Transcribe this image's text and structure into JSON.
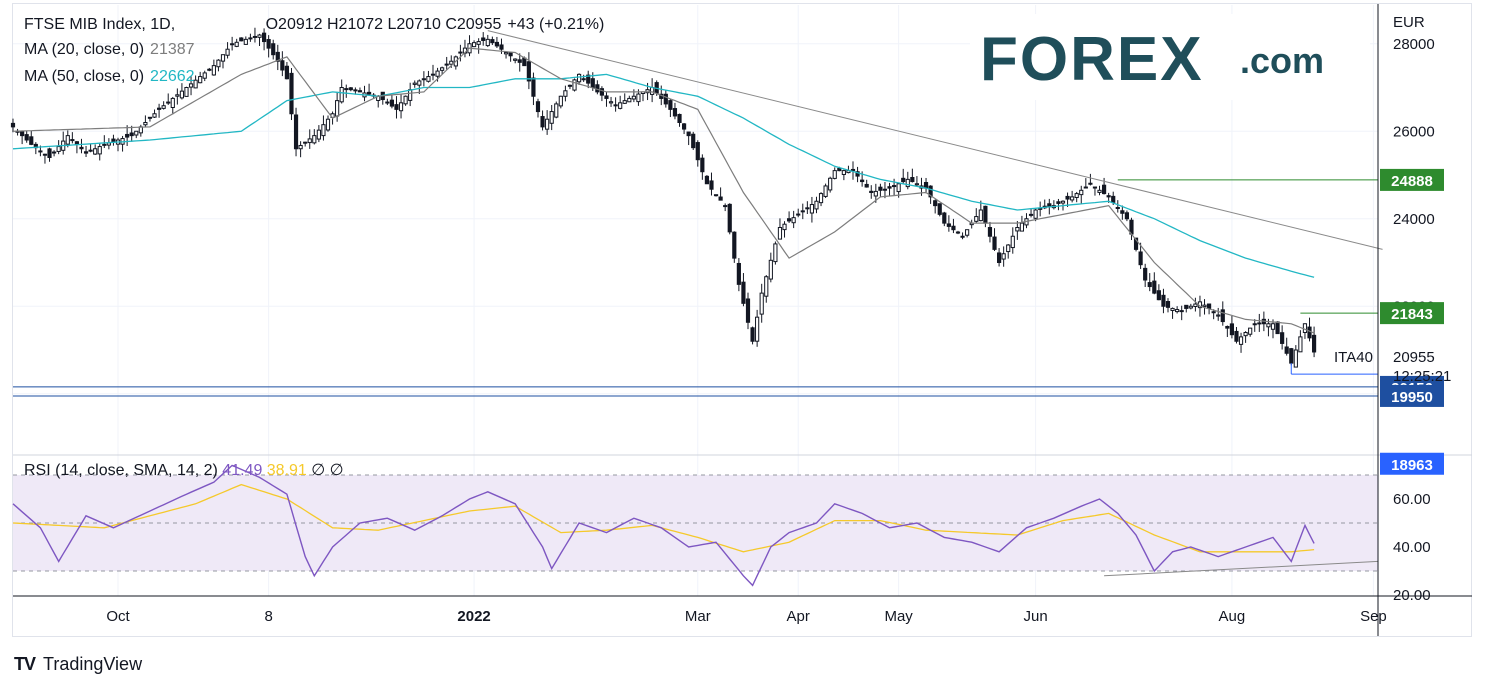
{
  "legend": {
    "symbol": "FTSE MIB Index, 1D, ",
    "ohlc": "O20912  H21072  L20710  C20955",
    "change": "+43 (+0.21%)",
    "ma20_label": "MA (20, close, 0)",
    "ma20_value": "21387",
    "ma50_label": "MA (50, close, 0)",
    "ma50_value": "22662"
  },
  "logo": {
    "text": "FOREX",
    "suffix": ".com"
  },
  "currency": "EUR",
  "price_labels": {
    "symbol": "ITA40",
    "last": "20955",
    "countdown": "12:25:21",
    "level_24888": "24888",
    "level_21843": "21843",
    "level_20156": "20156",
    "level_19950": "19950",
    "level_18963": "18963"
  },
  "rsi_legend": {
    "label": "RSI (14, close, SMA, 14, 2)",
    "rsi_value": "41.49",
    "sma_value": "38.91",
    "extra": "∅  ∅"
  },
  "brand": "TradingView",
  "colors": {
    "ma20": "#7d7d7d",
    "ma50": "#22b7c4",
    "rsi": "#7e57c2",
    "rsi_sma": "#f5c92b",
    "level_green": "#2e8b2e",
    "level_blue": "#2962ff",
    "axis_text": "#131722"
  },
  "chart_data": [
    {
      "type": "candlestick",
      "title": "FTSE MIB Index, 1D",
      "ylabel": "EUR",
      "ylim": [
        18600,
        29000
      ],
      "y_ticks": [
        20000,
        22000,
        24000,
        26000,
        28000
      ],
      "x_ticks": [
        "Oct",
        "8",
        "2022",
        "Mar",
        "Apr",
        "May",
        "Jun",
        "Aug",
        "Sep"
      ],
      "last_close": 20955,
      "close_anchors": [
        {
          "i": 0,
          "v": 26100
        },
        {
          "i": 4,
          "v": 25700
        },
        {
          "i": 8,
          "v": 25400
        },
        {
          "i": 12,
          "v": 25900
        },
        {
          "i": 16,
          "v": 25500
        },
        {
          "i": 20,
          "v": 25700
        },
        {
          "i": 26,
          "v": 25900
        },
        {
          "i": 32,
          "v": 26500
        },
        {
          "i": 38,
          "v": 27000
        },
        {
          "i": 44,
          "v": 27500
        },
        {
          "i": 48,
          "v": 28000
        },
        {
          "i": 54,
          "v": 28200
        },
        {
          "i": 58,
          "v": 27600
        },
        {
          "i": 60,
          "v": 27200
        },
        {
          "i": 62,
          "v": 25600
        },
        {
          "i": 66,
          "v": 25900
        },
        {
          "i": 70,
          "v": 26400
        },
        {
          "i": 72,
          "v": 27000
        },
        {
          "i": 76,
          "v": 26900
        },
        {
          "i": 80,
          "v": 26800
        },
        {
          "i": 84,
          "v": 26500
        },
        {
          "i": 88,
          "v": 27100
        },
        {
          "i": 92,
          "v": 27300
        },
        {
          "i": 96,
          "v": 27600
        },
        {
          "i": 100,
          "v": 28000
        },
        {
          "i": 104,
          "v": 28100
        },
        {
          "i": 108,
          "v": 27800
        },
        {
          "i": 112,
          "v": 27500
        },
        {
          "i": 116,
          "v": 26100
        },
        {
          "i": 120,
          "v": 26800
        },
        {
          "i": 124,
          "v": 27300
        },
        {
          "i": 128,
          "v": 26900
        },
        {
          "i": 132,
          "v": 26600
        },
        {
          "i": 136,
          "v": 26800
        },
        {
          "i": 140,
          "v": 27000
        },
        {
          "i": 144,
          "v": 26500
        },
        {
          "i": 148,
          "v": 25900
        },
        {
          "i": 152,
          "v": 24800
        },
        {
          "i": 156,
          "v": 24300
        },
        {
          "i": 159,
          "v": 22500
        },
        {
          "i": 162,
          "v": 21200
        },
        {
          "i": 164,
          "v": 22300
        },
        {
          "i": 168,
          "v": 23800
        },
        {
          "i": 172,
          "v": 24100
        },
        {
          "i": 176,
          "v": 24400
        },
        {
          "i": 180,
          "v": 25100
        },
        {
          "i": 184,
          "v": 25100
        },
        {
          "i": 188,
          "v": 24600
        },
        {
          "i": 192,
          "v": 24700
        },
        {
          "i": 196,
          "v": 24900
        },
        {
          "i": 200,
          "v": 24700
        },
        {
          "i": 204,
          "v": 23900
        },
        {
          "i": 208,
          "v": 23600
        },
        {
          "i": 212,
          "v": 24200
        },
        {
          "i": 216,
          "v": 23000
        },
        {
          "i": 220,
          "v": 23800
        },
        {
          "i": 224,
          "v": 24200
        },
        {
          "i": 228,
          "v": 24300
        },
        {
          "i": 232,
          "v": 24500
        },
        {
          "i": 236,
          "v": 24800
        },
        {
          "i": 240,
          "v": 24500
        },
        {
          "i": 244,
          "v": 24000
        },
        {
          "i": 248,
          "v": 22600
        },
        {
          "i": 252,
          "v": 22000
        },
        {
          "i": 256,
          "v": 21900
        },
        {
          "i": 260,
          "v": 22100
        },
        {
          "i": 264,
          "v": 21800
        },
        {
          "i": 268,
          "v": 21200
        },
        {
          "i": 272,
          "v": 21600
        },
        {
          "i": 276,
          "v": 21600
        },
        {
          "i": 280,
          "v": 20700
        },
        {
          "i": 283,
          "v": 21600
        },
        {
          "i": 285,
          "v": 20955
        }
      ],
      "ma20_anchors": [
        {
          "i": 0,
          "v": 26000
        },
        {
          "i": 30,
          "v": 26100
        },
        {
          "i": 50,
          "v": 27300
        },
        {
          "i": 60,
          "v": 27700
        },
        {
          "i": 70,
          "v": 26300
        },
        {
          "i": 80,
          "v": 26800
        },
        {
          "i": 90,
          "v": 26900
        },
        {
          "i": 100,
          "v": 27900
        },
        {
          "i": 110,
          "v": 27800
        },
        {
          "i": 120,
          "v": 27200
        },
        {
          "i": 130,
          "v": 26900
        },
        {
          "i": 140,
          "v": 26900
        },
        {
          "i": 150,
          "v": 26500
        },
        {
          "i": 160,
          "v": 24600
        },
        {
          "i": 170,
          "v": 23100
        },
        {
          "i": 180,
          "v": 23700
        },
        {
          "i": 190,
          "v": 24500
        },
        {
          "i": 200,
          "v": 24600
        },
        {
          "i": 210,
          "v": 23900
        },
        {
          "i": 220,
          "v": 23900
        },
        {
          "i": 230,
          "v": 24100
        },
        {
          "i": 240,
          "v": 24300
        },
        {
          "i": 250,
          "v": 23000
        },
        {
          "i": 260,
          "v": 22000
        },
        {
          "i": 270,
          "v": 21700
        },
        {
          "i": 280,
          "v": 21600
        },
        {
          "i": 285,
          "v": 21387
        }
      ],
      "ma50_anchors": [
        {
          "i": 0,
          "v": 25600
        },
        {
          "i": 30,
          "v": 25800
        },
        {
          "i": 50,
          "v": 26000
        },
        {
          "i": 60,
          "v": 26700
        },
        {
          "i": 70,
          "v": 26900
        },
        {
          "i": 80,
          "v": 26800
        },
        {
          "i": 90,
          "v": 27000
        },
        {
          "i": 100,
          "v": 27000
        },
        {
          "i": 110,
          "v": 27200
        },
        {
          "i": 120,
          "v": 27200
        },
        {
          "i": 130,
          "v": 27300
        },
        {
          "i": 140,
          "v": 27000
        },
        {
          "i": 150,
          "v": 26800
        },
        {
          "i": 160,
          "v": 26300
        },
        {
          "i": 170,
          "v": 25700
        },
        {
          "i": 180,
          "v": 25200
        },
        {
          "i": 190,
          "v": 24900
        },
        {
          "i": 200,
          "v": 24700
        },
        {
          "i": 210,
          "v": 24400
        },
        {
          "i": 220,
          "v": 24200
        },
        {
          "i": 230,
          "v": 24300
        },
        {
          "i": 240,
          "v": 24400
        },
        {
          "i": 250,
          "v": 24000
        },
        {
          "i": 260,
          "v": 23500
        },
        {
          "i": 270,
          "v": 23100
        },
        {
          "i": 280,
          "v": 22800
        },
        {
          "i": 285,
          "v": 22662
        }
      ],
      "trendline": [
        {
          "i": 104,
          "v": 28300
        },
        {
          "i": 300,
          "v": 23300
        }
      ],
      "levels": [
        24888,
        21843,
        20156,
        19950,
        18963
      ]
    },
    {
      "type": "line",
      "title": "RSI (14, close, SMA, 14, 2)",
      "ylim": [
        20,
        75
      ],
      "y_ticks": [
        20,
        40,
        60
      ],
      "bands": [
        30,
        50,
        70
      ],
      "rsi_value": 41.49,
      "sma_value": 38.91,
      "rsi_anchors": [
        {
          "i": 0,
          "v": 58
        },
        {
          "i": 6,
          "v": 48
        },
        {
          "i": 10,
          "v": 34
        },
        {
          "i": 16,
          "v": 53
        },
        {
          "i": 22,
          "v": 48
        },
        {
          "i": 30,
          "v": 55
        },
        {
          "i": 38,
          "v": 62
        },
        {
          "i": 44,
          "v": 67
        },
        {
          "i": 48,
          "v": 74
        },
        {
          "i": 54,
          "v": 69
        },
        {
          "i": 60,
          "v": 62
        },
        {
          "i": 64,
          "v": 36
        },
        {
          "i": 66,
          "v": 28
        },
        {
          "i": 70,
          "v": 40
        },
        {
          "i": 76,
          "v": 50
        },
        {
          "i": 82,
          "v": 52
        },
        {
          "i": 88,
          "v": 47
        },
        {
          "i": 94,
          "v": 53
        },
        {
          "i": 100,
          "v": 60
        },
        {
          "i": 104,
          "v": 63
        },
        {
          "i": 110,
          "v": 58
        },
        {
          "i": 116,
          "v": 40
        },
        {
          "i": 118,
          "v": 31
        },
        {
          "i": 124,
          "v": 50
        },
        {
          "i": 130,
          "v": 46
        },
        {
          "i": 136,
          "v": 52
        },
        {
          "i": 142,
          "v": 48
        },
        {
          "i": 148,
          "v": 40
        },
        {
          "i": 154,
          "v": 42
        },
        {
          "i": 160,
          "v": 28
        },
        {
          "i": 162,
          "v": 24
        },
        {
          "i": 166,
          "v": 40
        },
        {
          "i": 170,
          "v": 46
        },
        {
          "i": 176,
          "v": 50
        },
        {
          "i": 180,
          "v": 58
        },
        {
          "i": 186,
          "v": 54
        },
        {
          "i": 192,
          "v": 48
        },
        {
          "i": 198,
          "v": 50
        },
        {
          "i": 204,
          "v": 44
        },
        {
          "i": 210,
          "v": 42
        },
        {
          "i": 216,
          "v": 38
        },
        {
          "i": 222,
          "v": 48
        },
        {
          "i": 228,
          "v": 52
        },
        {
          "i": 234,
          "v": 57
        },
        {
          "i": 238,
          "v": 60
        },
        {
          "i": 242,
          "v": 54
        },
        {
          "i": 246,
          "v": 45
        },
        {
          "i": 250,
          "v": 30
        },
        {
          "i": 254,
          "v": 38
        },
        {
          "i": 258,
          "v": 40
        },
        {
          "i": 264,
          "v": 36
        },
        {
          "i": 270,
          "v": 40
        },
        {
          "i": 276,
          "v": 44
        },
        {
          "i": 280,
          "v": 34
        },
        {
          "i": 283,
          "v": 49
        },
        {
          "i": 285,
          "v": 41.49
        }
      ],
      "sma_anchors": [
        {
          "i": 0,
          "v": 50
        },
        {
          "i": 20,
          "v": 48
        },
        {
          "i": 40,
          "v": 58
        },
        {
          "i": 50,
          "v": 66
        },
        {
          "i": 60,
          "v": 60
        },
        {
          "i": 70,
          "v": 48
        },
        {
          "i": 80,
          "v": 47
        },
        {
          "i": 90,
          "v": 51
        },
        {
          "i": 100,
          "v": 55
        },
        {
          "i": 110,
          "v": 57
        },
        {
          "i": 120,
          "v": 46
        },
        {
          "i": 130,
          "v": 47
        },
        {
          "i": 140,
          "v": 49
        },
        {
          "i": 150,
          "v": 44
        },
        {
          "i": 160,
          "v": 38
        },
        {
          "i": 170,
          "v": 42
        },
        {
          "i": 180,
          "v": 51
        },
        {
          "i": 190,
          "v": 51
        },
        {
          "i": 200,
          "v": 47
        },
        {
          "i": 210,
          "v": 46
        },
        {
          "i": 220,
          "v": 45
        },
        {
          "i": 230,
          "v": 51
        },
        {
          "i": 240,
          "v": 54
        },
        {
          "i": 250,
          "v": 45
        },
        {
          "i": 260,
          "v": 38
        },
        {
          "i": 270,
          "v": 38
        },
        {
          "i": 280,
          "v": 38
        },
        {
          "i": 285,
          "v": 38.91
        }
      ],
      "support_line": [
        {
          "i": 239,
          "v": 28
        },
        {
          "i": 299,
          "v": 34
        }
      ]
    }
  ]
}
